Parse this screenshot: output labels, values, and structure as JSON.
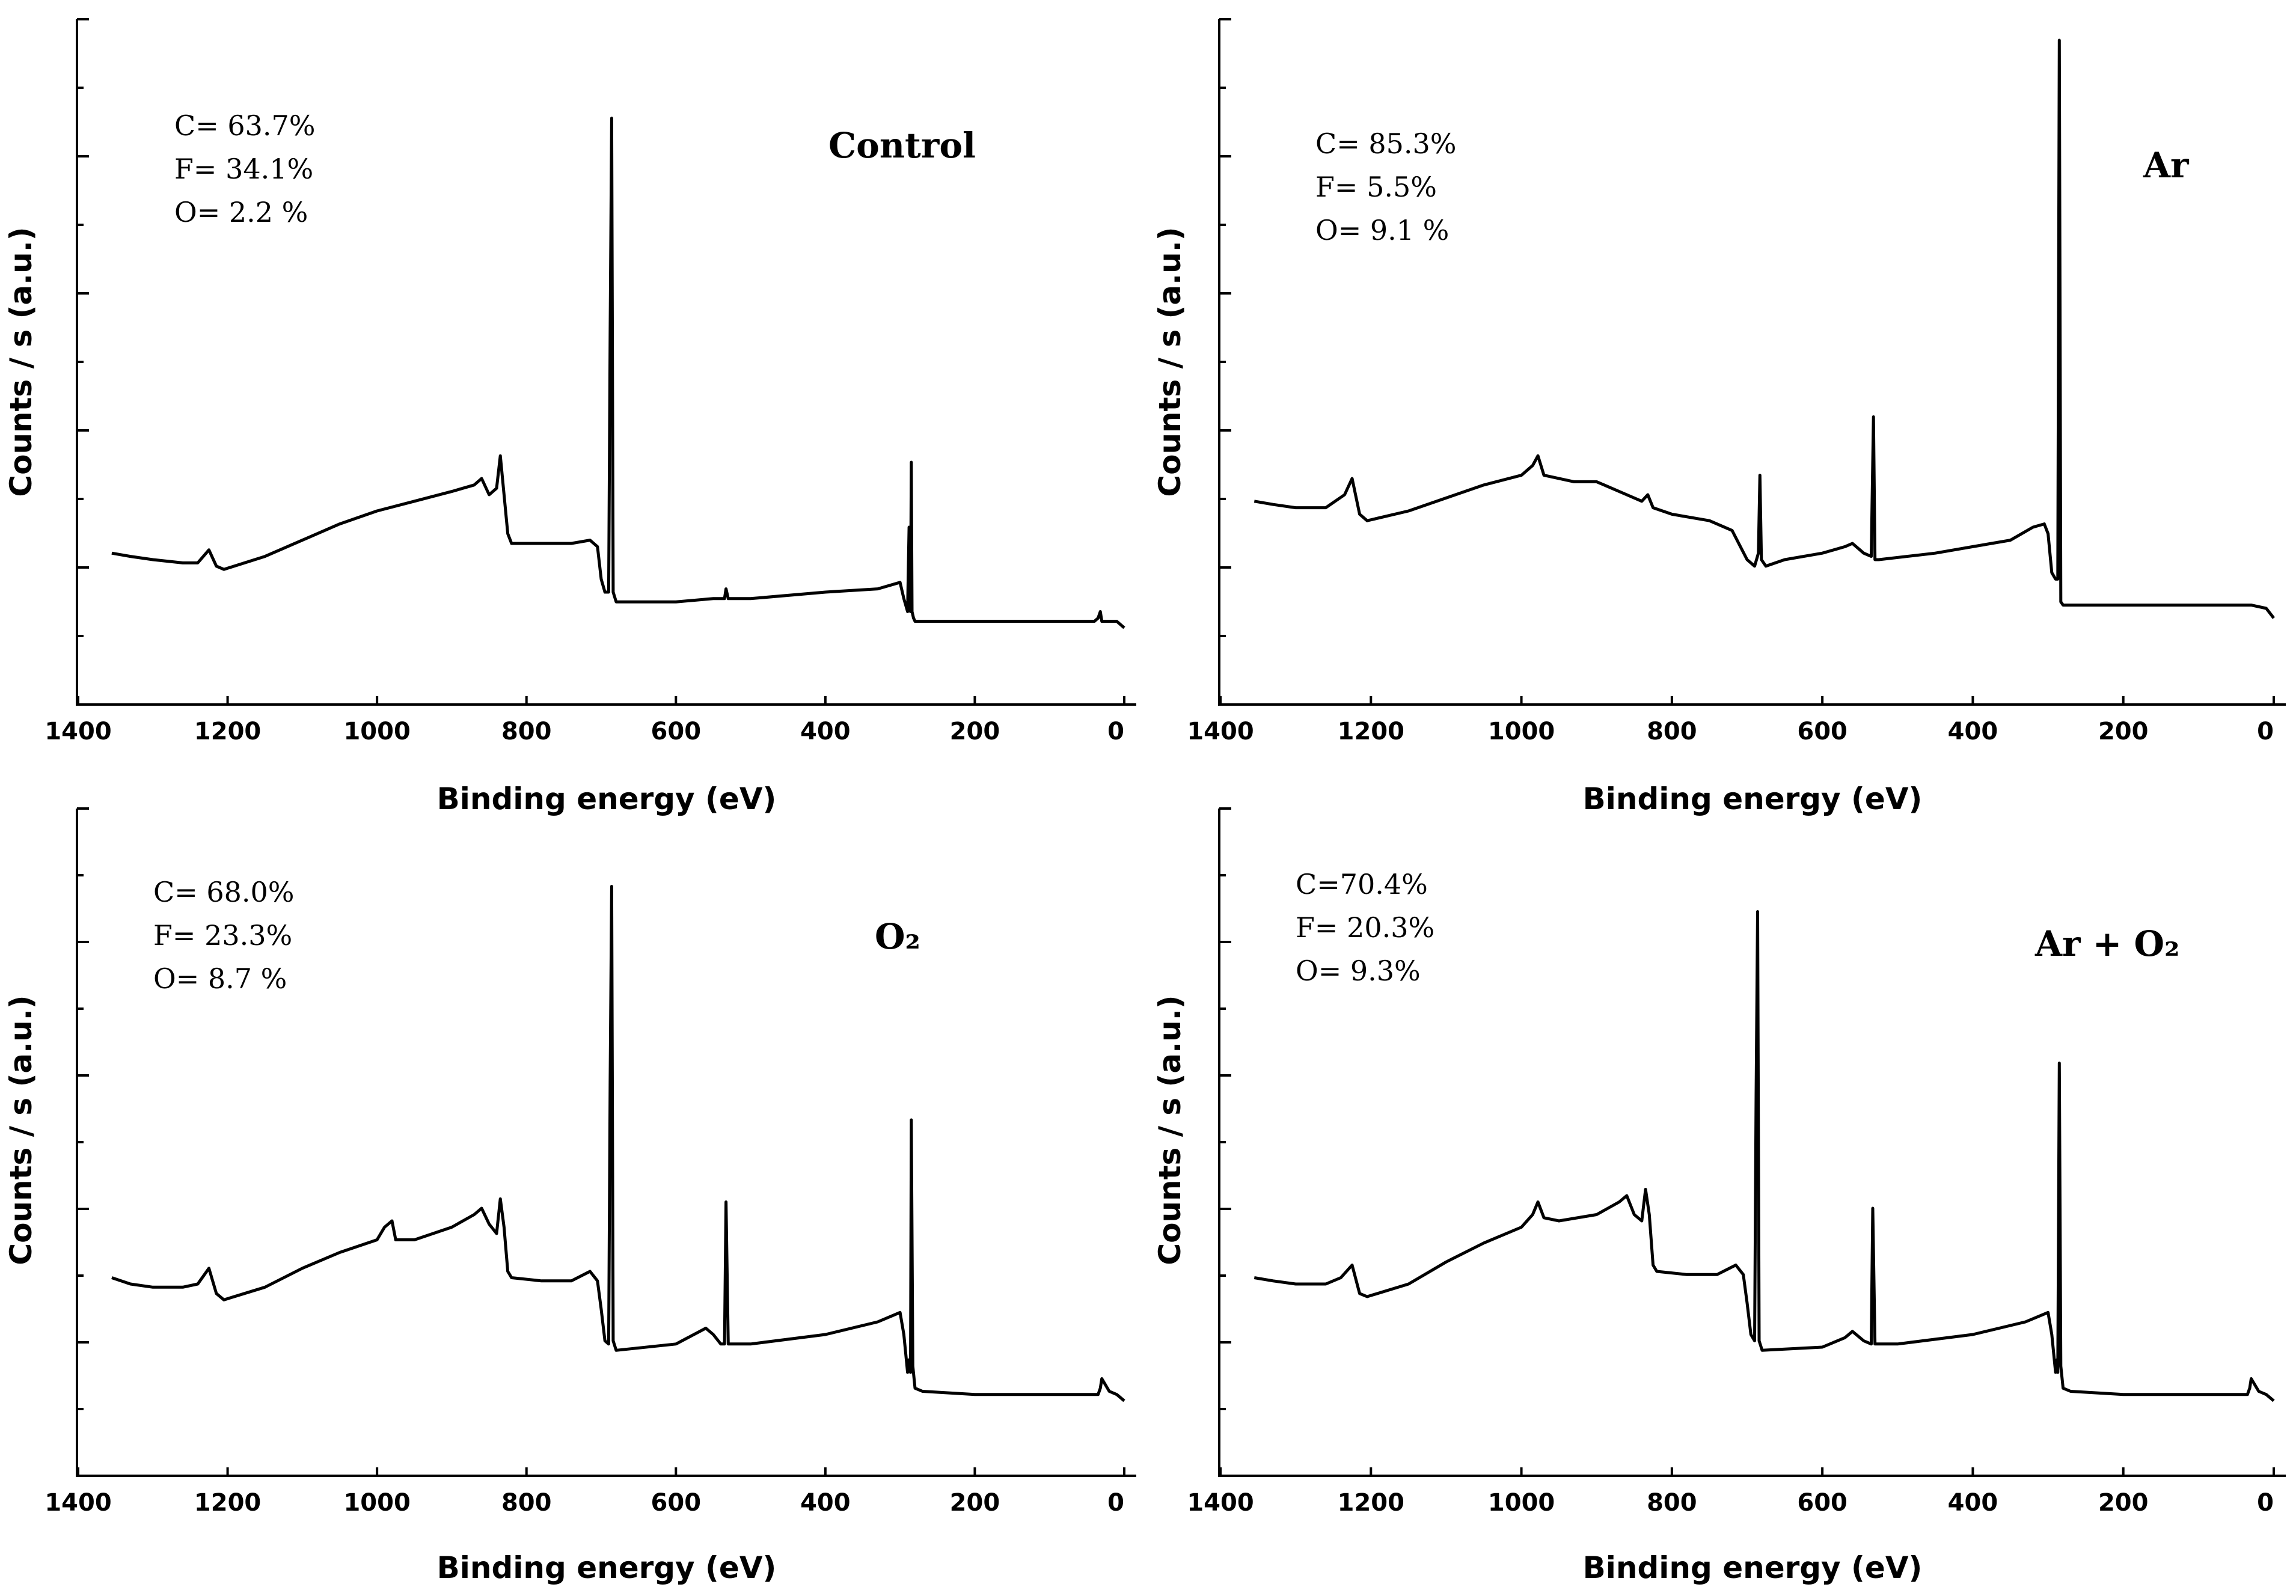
{
  "figure": {
    "x_axis_title": "Binding energy (eV)",
    "y_axis_title": "Counts / s (a.u.)",
    "x_tick_labels": [
      "1400",
      "1200",
      "1000",
      "800",
      "600",
      "400",
      "200",
      "0"
    ]
  },
  "chart_data": [
    {
      "type": "line",
      "panel_title": "Control",
      "composition": [
        "C= 63.7%",
        "F= 34.1%",
        "O= 2.2 %"
      ],
      "xlabel": "Binding energy (eV)",
      "ylabel": "Counts / s (a.u.)",
      "xlim": [
        1400,
        0
      ],
      "ylim": [
        0,
        100
      ],
      "x_reversed": true,
      "y_tick_labels_shown": false,
      "series": [
        {
          "x": [
            1355,
            1330,
            1300,
            1260,
            1240,
            1225,
            1215,
            1205,
            1150,
            1100,
            1050,
            1000,
            950,
            900,
            870,
            860,
            850,
            840,
            835,
            830,
            825,
            820,
            780,
            740,
            715,
            705,
            700,
            695,
            690,
            688,
            686,
            684,
            680,
            600,
            550,
            535,
            533,
            530,
            500,
            400,
            330,
            300,
            295,
            290,
            288,
            286,
            285,
            284,
            282,
            280,
            270,
            200,
            100,
            40,
            35,
            32,
            30,
            20,
            10,
            0
          ],
          "y": [
            21,
            20.5,
            20,
            19.5,
            19.5,
            21.5,
            19,
            18.5,
            20.5,
            23,
            25.5,
            27.5,
            29,
            30.5,
            31.5,
            32.5,
            30,
            31,
            36,
            30,
            24,
            22.5,
            22.5,
            22.5,
            23,
            22,
            17,
            15,
            15,
            55,
            88,
            15,
            13.5,
            13.5,
            14,
            14,
            15.5,
            14,
            14,
            15,
            15.5,
            16.5,
            14,
            12,
            25,
            12,
            35,
            12,
            11,
            10.5,
            10.5,
            10.5,
            10.5,
            10.5,
            11,
            12,
            10.5,
            10.5,
            10.5,
            9.5
          ]
        }
      ]
    },
    {
      "type": "line",
      "panel_title": "Ar",
      "composition": [
        "C= 85.3%",
        "F= 5.5%",
        "O= 9.1 %"
      ],
      "xlabel": "Binding energy (eV)",
      "ylabel": "Counts / s (a.u.)",
      "xlim": [
        1400,
        0
      ],
      "ylim": [
        0,
        100
      ],
      "x_reversed": true,
      "y_tick_labels_shown": false,
      "series": [
        {
          "x": [
            1355,
            1330,
            1300,
            1260,
            1235,
            1225,
            1215,
            1205,
            1150,
            1100,
            1050,
            1000,
            985,
            978,
            970,
            930,
            900,
            860,
            840,
            832,
            825,
            800,
            750,
            720,
            700,
            690,
            685,
            683,
            681,
            675,
            650,
            600,
            570,
            560,
            545,
            535,
            532,
            530,
            525,
            450,
            400,
            350,
            320,
            305,
            300,
            295,
            290,
            287,
            285,
            283,
            280,
            200,
            100,
            30,
            10,
            0
          ],
          "y": [
            29,
            28.5,
            28,
            28,
            30,
            32.5,
            27,
            26,
            27.5,
            29.5,
            31.5,
            33,
            34.5,
            36,
            33,
            32,
            32,
            30,
            29,
            30,
            28,
            27,
            26,
            24.5,
            20,
            19,
            21,
            33,
            20,
            19,
            20,
            21,
            22,
            22.5,
            21,
            20.5,
            42,
            20,
            20,
            21,
            22,
            23,
            25,
            25.5,
            24,
            18,
            17,
            17,
            100,
            13.5,
            13,
            13,
            13,
            13,
            12.5,
            11
          ]
        }
      ]
    },
    {
      "type": "line",
      "panel_title": "O₂",
      "composition": [
        "C= 68.0%",
        "F= 23.3%",
        "O= 8.7 %"
      ],
      "xlabel": "Binding energy (eV)",
      "ylabel": "Counts / s (a.u.)",
      "xlim": [
        1400,
        0
      ],
      "ylim": [
        0,
        100
      ],
      "x_reversed": true,
      "y_tick_labels_shown": false,
      "series": [
        {
          "x": [
            1355,
            1330,
            1300,
            1260,
            1240,
            1225,
            1215,
            1205,
            1150,
            1100,
            1050,
            1000,
            990,
            980,
            975,
            950,
            900,
            870,
            860,
            850,
            840,
            835,
            830,
            825,
            820,
            780,
            740,
            715,
            705,
            700,
            695,
            690,
            688,
            686,
            684,
            680,
            600,
            560,
            550,
            540,
            535,
            533,
            530,
            500,
            400,
            330,
            300,
            295,
            290,
            288,
            286,
            285,
            283,
            280,
            270,
            200,
            100,
            40,
            35,
            32,
            30,
            20,
            10,
            0
          ],
          "y": [
            29,
            28,
            27.5,
            27.5,
            28,
            30.5,
            26.5,
            25.5,
            27.5,
            30.5,
            33,
            35,
            37,
            38,
            35,
            35,
            37,
            39,
            40,
            37.5,
            36,
            41.5,
            37,
            30,
            29,
            28.5,
            28.5,
            30,
            28.5,
            24,
            19,
            18.5,
            60,
            91,
            19,
            17.5,
            18.5,
            21,
            20,
            18.5,
            18.5,
            41,
            18.5,
            18.5,
            20,
            22,
            23.5,
            20,
            14,
            16,
            14,
            54,
            15,
            11.5,
            11,
            10.5,
            10.5,
            10.5,
            10.5,
            11.5,
            13,
            11,
            10.5,
            9.5
          ]
        }
      ]
    },
    {
      "type": "line",
      "panel_title": "Ar + O₂",
      "composition": [
        "C=70.4%",
        "F= 20.3%",
        "O= 9.3%"
      ],
      "xlabel": "Binding energy (eV)",
      "ylabel": "Counts / s (a.u.)",
      "xlim": [
        1400,
        0
      ],
      "ylim": [
        0,
        100
      ],
      "x_reversed": true,
      "y_tick_labels_shown": false,
      "series": [
        {
          "x": [
            1355,
            1330,
            1300,
            1260,
            1240,
            1225,
            1215,
            1205,
            1150,
            1100,
            1050,
            1000,
            985,
            978,
            970,
            950,
            900,
            870,
            860,
            850,
            840,
            835,
            830,
            825,
            820,
            780,
            740,
            715,
            705,
            700,
            695,
            690,
            688,
            686,
            684,
            680,
            600,
            570,
            560,
            545,
            535,
            533,
            530,
            500,
            400,
            330,
            300,
            295,
            290,
            288,
            287,
            285,
            283,
            280,
            270,
            200,
            100,
            40,
            35,
            32,
            30,
            20,
            10,
            0
          ],
          "y": [
            29,
            28.5,
            28,
            28,
            29,
            31,
            26.5,
            26,
            28,
            31.5,
            34.5,
            37,
            39,
            41,
            38.5,
            38,
            39,
            41,
            42,
            39,
            38,
            43,
            39,
            31,
            30,
            29.5,
            29.5,
            31,
            29.5,
            25,
            20,
            19,
            58,
            87,
            19,
            17.5,
            18,
            19.5,
            20.5,
            19,
            18.5,
            40,
            18.5,
            18.5,
            20,
            22,
            23.5,
            20,
            14,
            16,
            14,
            63,
            15,
            11.5,
            11,
            10.5,
            10.5,
            10.5,
            10.5,
            11.5,
            13,
            11,
            10.5,
            9.5
          ]
        }
      ]
    }
  ]
}
